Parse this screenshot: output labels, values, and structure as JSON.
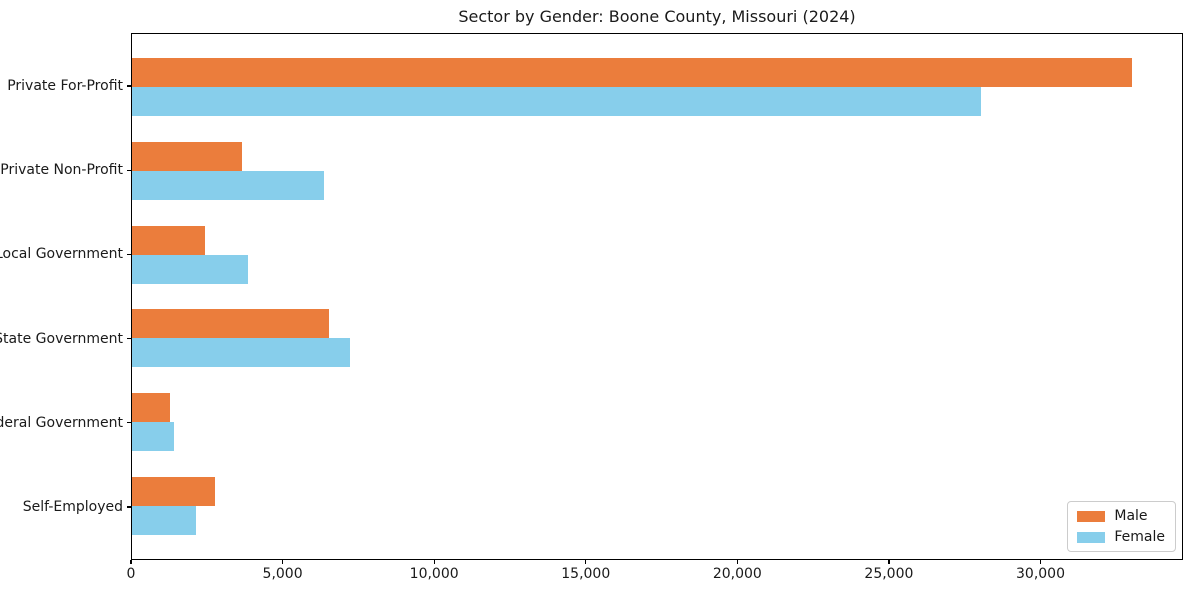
{
  "chart_data": {
    "type": "bar",
    "orientation": "horizontal",
    "title": "Sector by Gender: Boone County, Missouri (2024)",
    "categories": [
      "Private For-Profit",
      "Private Non-Profit",
      "Local Government",
      "State Government",
      "Federal Government",
      "Self-Employed"
    ],
    "series": [
      {
        "name": "Male",
        "color": "#eb7d3c",
        "values": [
          33050,
          3650,
          2400,
          6500,
          1250,
          2750
        ]
      },
      {
        "name": "Female",
        "color": "#87ceeb",
        "values": [
          28050,
          6350,
          3850,
          7200,
          1400,
          2100
        ]
      }
    ],
    "xlabel": "",
    "ylabel": "",
    "xlim": [
      0,
      34700
    ],
    "xticks": [
      {
        "value": 0,
        "label": "0"
      },
      {
        "value": 5000,
        "label": "5,000"
      },
      {
        "value": 10000,
        "label": "10,000"
      },
      {
        "value": 15000,
        "label": "15,000"
      },
      {
        "value": 20000,
        "label": "20,000"
      },
      {
        "value": 25000,
        "label": "25,000"
      },
      {
        "value": 30000,
        "label": "30,000"
      }
    ],
    "grid": false,
    "legend": {
      "position": "lower right",
      "entries": [
        "Male",
        "Female"
      ]
    },
    "background": "#ffffff",
    "spine_color": "#000000",
    "text_color": "#1a1a1a"
  }
}
